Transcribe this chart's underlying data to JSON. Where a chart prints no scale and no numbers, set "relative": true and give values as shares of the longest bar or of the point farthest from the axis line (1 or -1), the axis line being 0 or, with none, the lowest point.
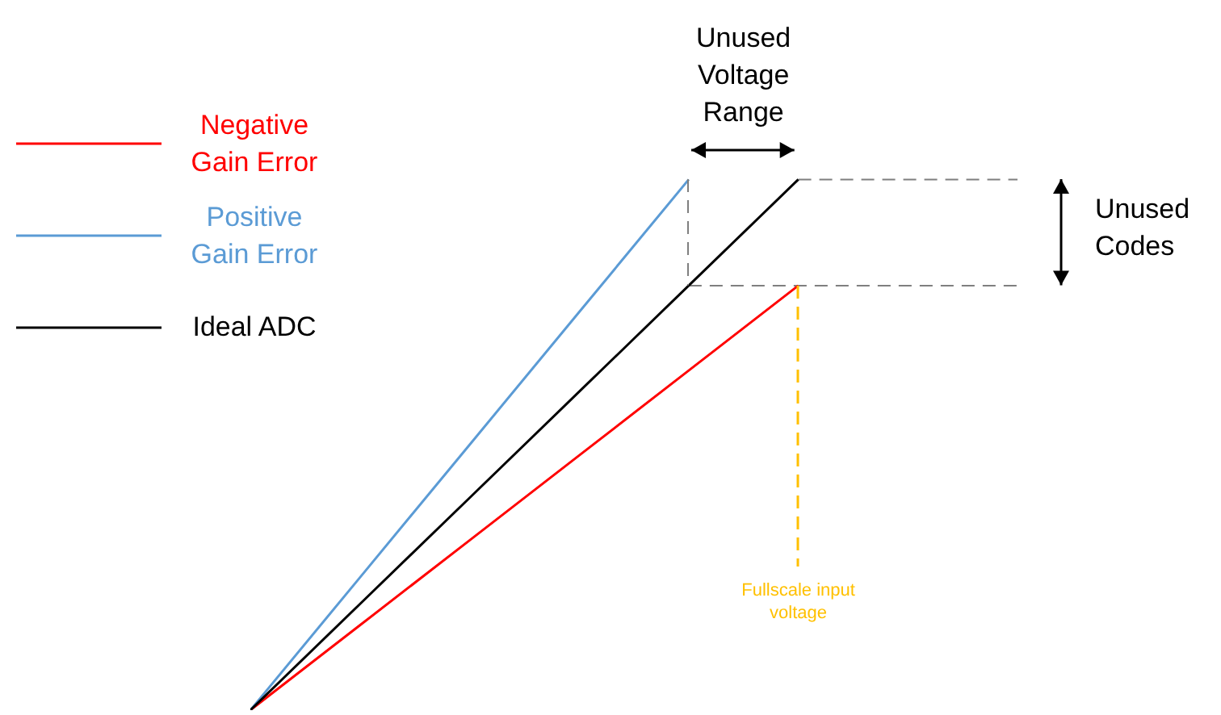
{
  "chart_data": {
    "type": "line",
    "relative": true,
    "legend": "left",
    "line_style": "solid",
    "marker": "none",
    "categories": [
      null,
      null,
      null,
      null,
      null,
      null,
      null,
      null
    ],
    "series": [
      {
        "name": "Negative Gain Error",
        "color": "#ff0000",
        "values": [
          0,
          0.16,
          0.32,
          0.48,
          0.64,
          0.8,
          null,
          null
        ]
      },
      {
        "name": "Positive Gain Error",
        "color": "#5b9bd5",
        "values": [
          0,
          0.25,
          0.5,
          0.75,
          1,
          null,
          null,
          null
        ]
      },
      {
        "name": "Ideal ADC",
        "color": "#000000",
        "values": [
          0,
          0.2,
          0.4,
          0.6,
          0.8,
          1,
          null,
          null
        ]
      }
    ],
    "ref_lines": [
      {
        "axis": "y",
        "value": 0.8,
        "color": "#7f7f7f",
        "line_style": "dashed"
      },
      {
        "axis": "y",
        "value": 1,
        "color": "#7f7f7f",
        "line_style": "dashed"
      }
    ],
    "annotations": [
      "Unused Voltage Range",
      "Fullscale input voltage",
      "Unused Codes"
    ]
  }
}
